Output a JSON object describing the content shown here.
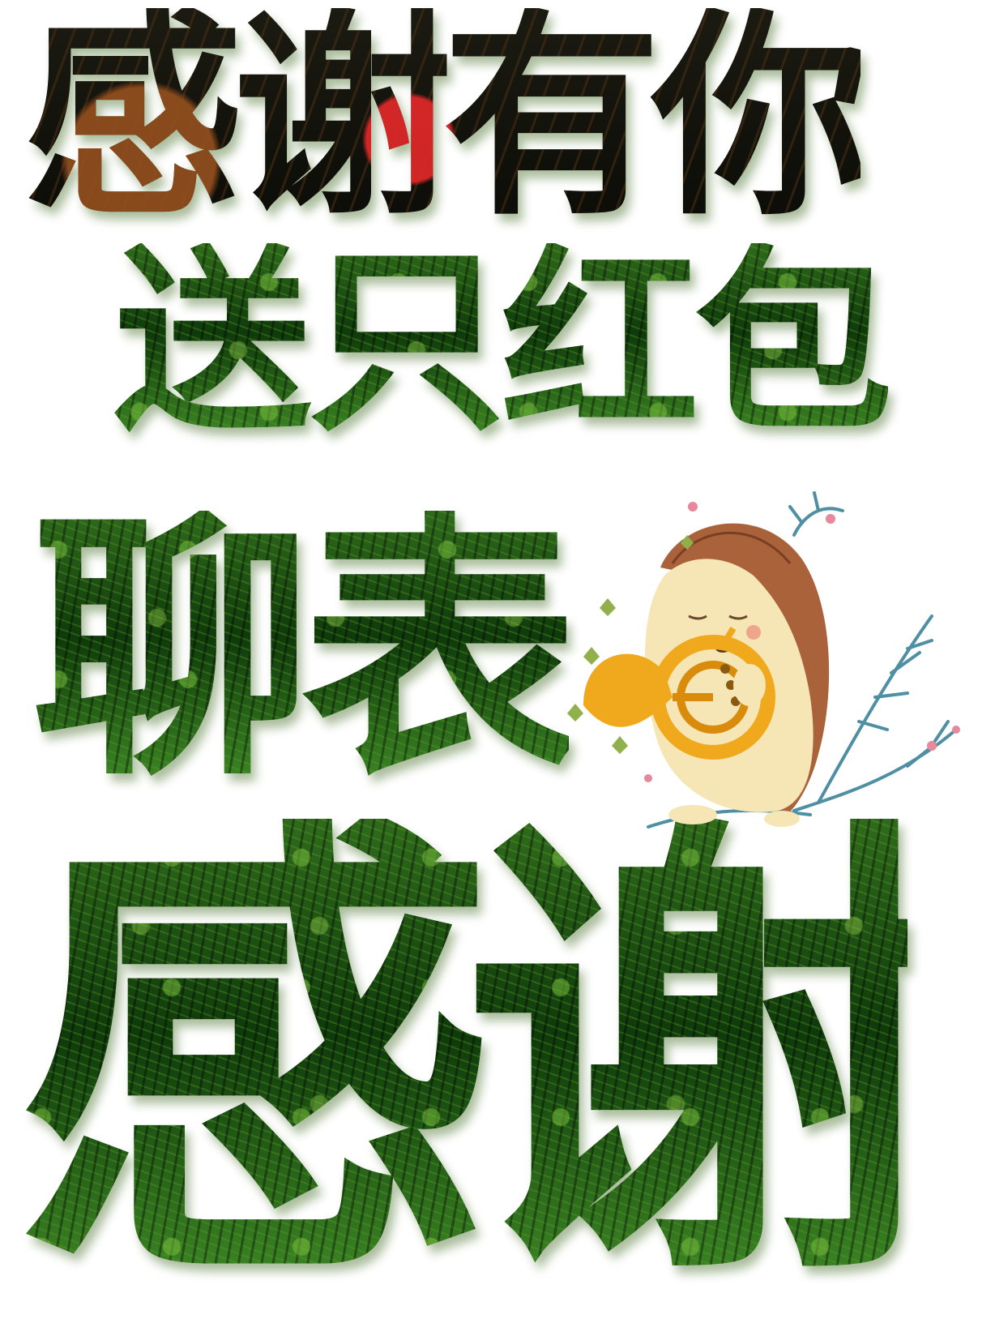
{
  "poster": {
    "line1": "感谢有你",
    "line2": "送只红包",
    "line3": "聊表",
    "line4": "感谢"
  },
  "illustration": {
    "icon": "hedgehog-with-french-horn-icon",
    "colors": {
      "fur": "#a9623a",
      "body": "#f6e5b5",
      "horn": "#f0a81c",
      "leaves": "#4f8fa3"
    }
  }
}
